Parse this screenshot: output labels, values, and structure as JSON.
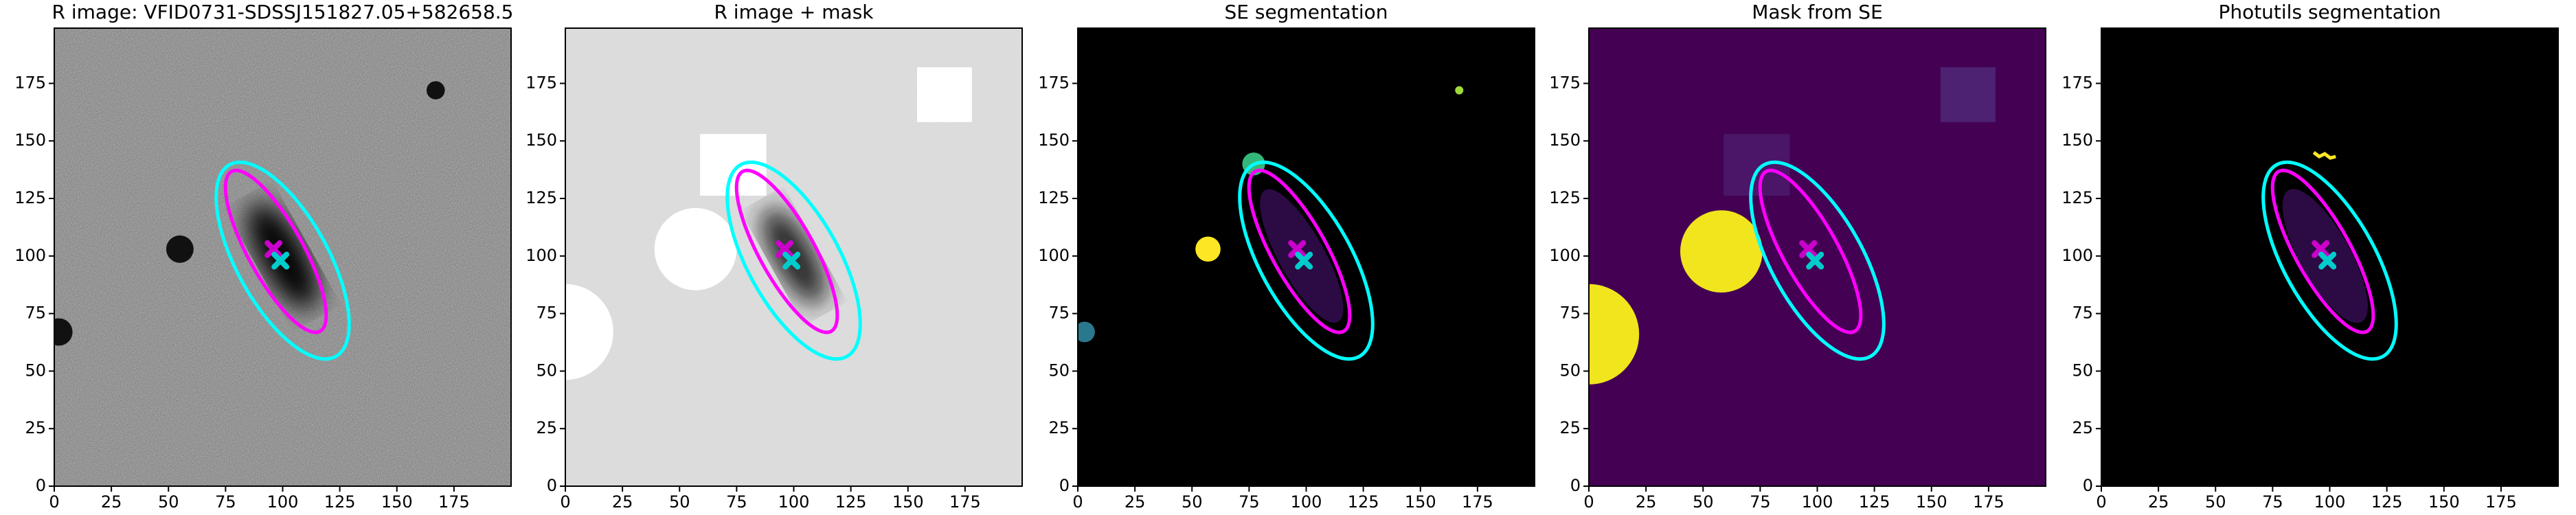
{
  "chart_data": [
    {
      "type": "image",
      "title": "R image: VFID0731-SDSSJ151827.05+582658.5",
      "xlim": [
        0,
        200
      ],
      "ylim": [
        0,
        199
      ],
      "xticks": [
        0,
        25,
        50,
        75,
        100,
        125,
        150,
        175
      ],
      "yticks": [
        0,
        25,
        50,
        75,
        100,
        125,
        150,
        175
      ],
      "ellipses": [
        {
          "center": [
            100,
            98
          ],
          "semi_major": 48,
          "semi_minor": 20,
          "angle": 119,
          "color": "#00ffff"
        },
        {
          "center": [
            97,
            102
          ],
          "semi_major": 40,
          "semi_minor": 12,
          "angle": 119,
          "color": "#ff00ff"
        }
      ],
      "markers": [
        {
          "x": 96,
          "y": 103,
          "color": "#cc00cc"
        },
        {
          "x": 99,
          "y": 98,
          "color": "#00cccc"
        }
      ]
    },
    {
      "type": "image",
      "title": "R image + mask",
      "xlim": [
        0,
        200
      ],
      "ylim": [
        0,
        199
      ],
      "xticks": [
        0,
        25,
        50,
        75,
        100,
        125,
        150,
        175
      ],
      "yticks": [
        0,
        25,
        50,
        75,
        100,
        125,
        150,
        175
      ],
      "ellipses": [
        {
          "center": [
            100,
            98
          ],
          "semi_major": 48,
          "semi_minor": 20,
          "angle": 119,
          "color": "#00ffff"
        },
        {
          "center": [
            97,
            102
          ],
          "semi_major": 40,
          "semi_minor": 12,
          "angle": 119,
          "color": "#ff00ff"
        }
      ],
      "markers": [
        {
          "x": 96,
          "y": 103,
          "color": "#cc00cc"
        },
        {
          "x": 99,
          "y": 98,
          "color": "#00cccc"
        }
      ]
    },
    {
      "type": "image",
      "title": "SE segmentation",
      "xlim": [
        0,
        200
      ],
      "ylim": [
        0,
        199
      ],
      "xticks": [
        0,
        25,
        50,
        75,
        100,
        125,
        150,
        175
      ],
      "yticks": [
        0,
        25,
        50,
        75,
        100,
        125,
        150,
        175
      ],
      "ellipses": [
        {
          "center": [
            100,
            98
          ],
          "semi_major": 48,
          "semi_minor": 20,
          "angle": 119,
          "color": "#00ffff"
        },
        {
          "center": [
            97,
            102
          ],
          "semi_major": 40,
          "semi_minor": 12,
          "angle": 119,
          "color": "#ff00ff"
        }
      ],
      "markers": [
        {
          "x": 96,
          "y": 103,
          "color": "#cc00cc"
        },
        {
          "x": 99,
          "y": 98,
          "color": "#00cccc"
        }
      ]
    },
    {
      "type": "image",
      "title": "Mask from SE",
      "xlim": [
        0,
        200
      ],
      "ylim": [
        0,
        199
      ],
      "xticks": [
        0,
        25,
        50,
        75,
        100,
        125,
        150,
        175
      ],
      "yticks": [
        0,
        25,
        50,
        75,
        100,
        125,
        150,
        175
      ],
      "ellipses": [
        {
          "center": [
            100,
            98
          ],
          "semi_major": 48,
          "semi_minor": 20,
          "angle": 119,
          "color": "#00ffff"
        },
        {
          "center": [
            97,
            102
          ],
          "semi_major": 40,
          "semi_minor": 12,
          "angle": 119,
          "color": "#ff00ff"
        }
      ],
      "markers": [
        {
          "x": 96,
          "y": 103,
          "color": "#cc00cc"
        },
        {
          "x": 99,
          "y": 98,
          "color": "#00cccc"
        }
      ]
    },
    {
      "type": "image",
      "title": "Photutils segmentation",
      "xlim": [
        0,
        200
      ],
      "ylim": [
        0,
        199
      ],
      "xticks": [
        0,
        25,
        50,
        75,
        100,
        125,
        150,
        175
      ],
      "yticks": [
        0,
        25,
        50,
        75,
        100,
        125,
        150,
        175
      ],
      "ellipses": [
        {
          "center": [
            100,
            98
          ],
          "semi_major": 48,
          "semi_minor": 20,
          "angle": 119,
          "color": "#00ffff"
        },
        {
          "center": [
            97,
            102
          ],
          "semi_major": 40,
          "semi_minor": 12,
          "angle": 119,
          "color": "#ff00ff"
        }
      ],
      "markers": [
        {
          "x": 96,
          "y": 103,
          "color": "#cc00cc"
        },
        {
          "x": 99,
          "y": 98,
          "color": "#00cccc"
        }
      ]
    }
  ]
}
